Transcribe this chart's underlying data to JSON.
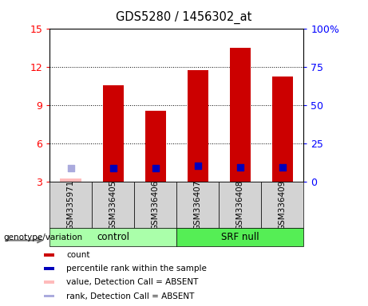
{
  "title": "GDS5280 / 1456302_at",
  "samples": [
    "GSM335971",
    "GSM336405",
    "GSM336406",
    "GSM336407",
    "GSM336408",
    "GSM336409"
  ],
  "count_values": [
    3.3,
    10.6,
    8.6,
    11.8,
    13.5,
    11.3
  ],
  "count_absent": [
    true,
    false,
    false,
    false,
    false,
    false
  ],
  "percentile_values": [
    9.0,
    9.0,
    9.0,
    10.5,
    9.6,
    9.5
  ],
  "percentile_absent": [
    true,
    false,
    false,
    false,
    false,
    false
  ],
  "percentile_scale_min": 0,
  "percentile_scale_max": 100,
  "count_scale_min": 3,
  "count_scale_max": 15,
  "count_ticks": [
    3,
    6,
    9,
    12,
    15
  ],
  "percentile_ticks": [
    0,
    25,
    50,
    75,
    100
  ],
  "percentile_tick_labels": [
    "0",
    "25",
    "50",
    "75",
    "100%"
  ],
  "bar_color_present": "#cc0000",
  "bar_color_absent": "#ffbbbb",
  "dot_color_present": "#0000bb",
  "dot_color_absent": "#aaaadd",
  "control_color": "#aaffaa",
  "srf_color": "#55ee55",
  "bar_width": 0.5,
  "dot_size": 40,
  "control_samples": [
    0,
    1,
    2
  ],
  "srf_samples": [
    3,
    4,
    5
  ],
  "legend_labels": [
    "count",
    "percentile rank within the sample",
    "value, Detection Call = ABSENT",
    "rank, Detection Call = ABSENT"
  ],
  "legend_colors": [
    "#cc0000",
    "#0000bb",
    "#ffbbbb",
    "#aaaadd"
  ]
}
